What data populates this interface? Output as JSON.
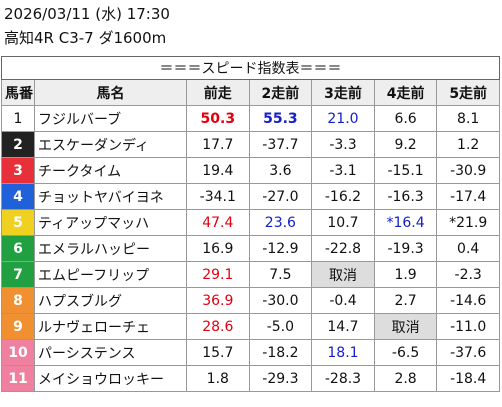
{
  "header": {
    "datetime": "2026/03/11 (水) 17:30",
    "race": "高知4R C3-7 ダ1600m"
  },
  "table": {
    "title": "＝＝＝スピード指数表＝＝＝",
    "columns": [
      "馬番",
      "馬名",
      "前走",
      "2走前",
      "3走前",
      "4走前",
      "5走前"
    ],
    "rows": [
      [
        "1",
        "フジルバーブ",
        "50.3",
        "55.3",
        "21.0",
        "6.6",
        "8.1"
      ],
      [
        "2",
        "エスケーダンディ",
        "17.7",
        "-37.7",
        "-3.3",
        "9.2",
        "1.2"
      ],
      [
        "3",
        "チークタイム",
        "19.4",
        "3.6",
        "-3.1",
        "-15.1",
        "-30.9"
      ],
      [
        "4",
        "チョットヤバイヨネ",
        "-34.1",
        "-27.0",
        "-16.2",
        "-16.3",
        "-17.4"
      ],
      [
        "5",
        "ティアップマッハ",
        "47.4",
        "23.6",
        "10.7",
        "*16.4",
        "*21.9"
      ],
      [
        "6",
        "エメラルハッピー",
        "16.9",
        "-12.9",
        "-22.8",
        "-19.3",
        "0.4"
      ],
      [
        "7",
        "エムピーフリップ",
        "29.1",
        "7.5",
        "取消",
        "1.9",
        "-2.3"
      ],
      [
        "8",
        "ハプスブルグ",
        "36.9",
        "-30.0",
        "-0.4",
        "2.7",
        "-14.6"
      ],
      [
        "9",
        "ルナヴェローチェ",
        "28.6",
        "-5.0",
        "14.7",
        "取消",
        "-11.0"
      ],
      [
        "10",
        "パーシステンス",
        "15.7",
        "-18.2",
        "18.1",
        "-6.5",
        "-37.6"
      ],
      [
        "11",
        "メイショウロッキー",
        "1.8",
        "-29.3",
        "-28.3",
        "2.8",
        "-18.4"
      ]
    ]
  }
}
